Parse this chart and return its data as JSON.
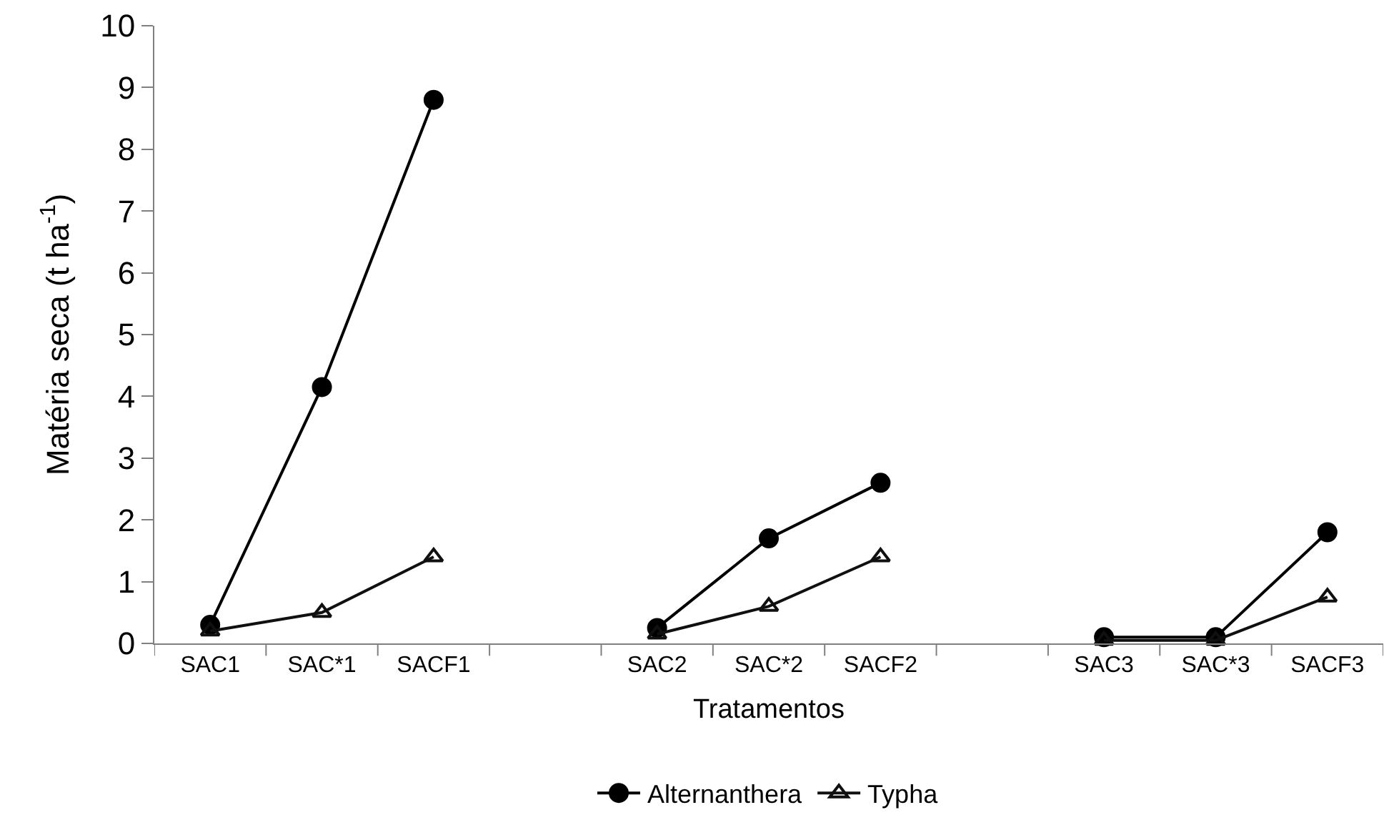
{
  "chart_data": {
    "type": "line",
    "xlabel": "Tratamentos",
    "ylabel": "Matéria seca (t ha$^{-1}$)",
    "categories": [
      "SAC1",
      "SAC*1",
      "SACF1",
      null,
      "SAC2",
      "SAC*2",
      "SACF2",
      null,
      "SAC3",
      "SAC*3",
      "SACF3"
    ],
    "series": [
      {
        "name": "Alternanthera",
        "color": "#000000",
        "marker": "circle",
        "values": [
          0.3,
          4.15,
          8.8,
          null,
          0.25,
          1.7,
          2.6,
          null,
          0.1,
          0.1,
          1.8
        ]
      },
      {
        "name": "Typha",
        "color": "#101010",
        "marker": "triangle",
        "values": [
          0.2,
          0.5,
          1.4,
          null,
          0.15,
          0.6,
          1.4,
          null,
          0.05,
          0.05,
          0.75
        ]
      }
    ],
    "ylim": [
      0,
      10
    ],
    "yticks": [
      0,
      1,
      2,
      3,
      4,
      5,
      6,
      7,
      8,
      9,
      10
    ],
    "legend": "bottom",
    "line_style": "solid"
  }
}
